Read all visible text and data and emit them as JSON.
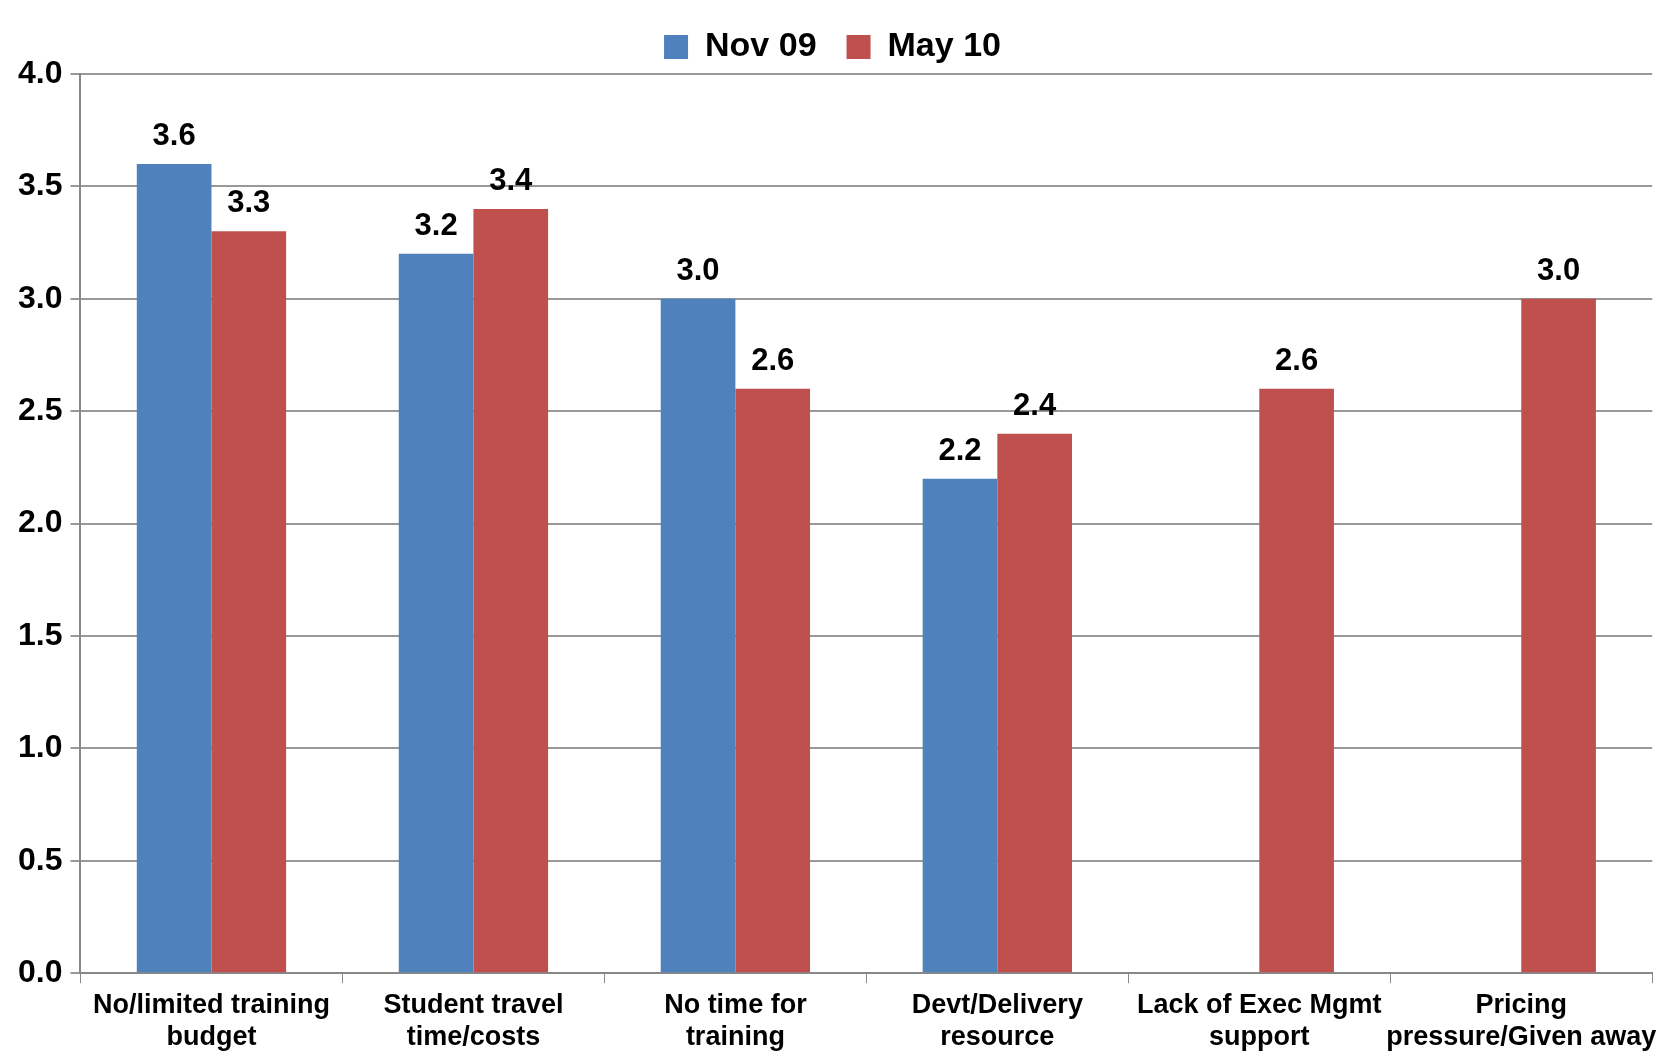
{
  "chart_data": {
    "type": "bar",
    "categories": [
      "No/limited training budget",
      "Student travel time/costs",
      "No time for training",
      "Devt/Delivery resource",
      "Lack of Exec Mgmt support",
      "Pricing pressure/Given away"
    ],
    "series": [
      {
        "name": "Nov 09",
        "color": "#4f81bd",
        "values": [
          3.6,
          3.2,
          3.0,
          2.2,
          null,
          null
        ],
        "value_labels": [
          "3.6",
          "3.2",
          "3.0",
          "2.2",
          null,
          null
        ]
      },
      {
        "name": "May 10",
        "color": "#c0504d",
        "values": [
          3.3,
          3.4,
          2.6,
          2.4,
          2.6,
          3.0
        ],
        "value_labels": [
          "3.3",
          "3.4",
          "2.6",
          "2.4",
          "2.6",
          "3.0"
        ]
      }
    ],
    "ylim": [
      0,
      4
    ],
    "yticks": [
      {
        "value": 0,
        "label": "0.0"
      },
      {
        "value": 0.5,
        "label": "0.5"
      },
      {
        "value": 1,
        "label": "1.0"
      },
      {
        "value": 1.5,
        "label": "1.5"
      },
      {
        "value": 2,
        "label": "2.0"
      },
      {
        "value": 2.5,
        "label": "2.5"
      },
      {
        "value": 3,
        "label": "3.0"
      },
      {
        "value": 3.5,
        "label": "3.5"
      },
      {
        "value": 4,
        "label": "4.0"
      }
    ],
    "grid": "y",
    "legend": "top"
  }
}
